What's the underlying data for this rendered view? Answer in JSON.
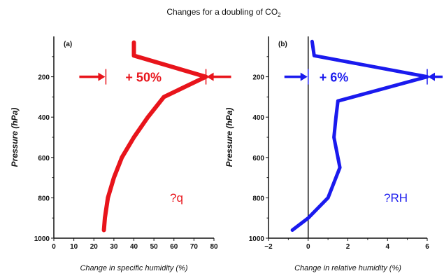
{
  "title": "Changes for a doubling of CO",
  "title_subscript": "2",
  "chart_data": [
    {
      "type": "line",
      "panel_label": "(a)",
      "xlabel": "Change in specific humidity (%)",
      "ylabel": "Pressure (hPa)",
      "xlim": [
        0,
        80
      ],
      "ylim": [
        1000,
        0
      ],
      "xticks": [
        0,
        10,
        20,
        30,
        40,
        50,
        60,
        70,
        80
      ],
      "yticks": [
        200,
        400,
        600,
        800,
        1000
      ],
      "color": "#e8141b",
      "series": [
        {
          "points": [
            [
              40,
              30
            ],
            [
              40,
              95
            ],
            [
              76,
              200
            ],
            [
              55,
              300
            ],
            [
              47,
              400
            ],
            [
              40,
              500
            ],
            [
              34,
              600
            ],
            [
              30,
              700
            ],
            [
              27,
              800
            ],
            [
              25.5,
              900
            ],
            [
              25,
              960
            ]
          ]
        }
      ],
      "annotations": {
        "arrow_label": "+ 50%",
        "arrow_pressure": 200,
        "arrow_from": 26,
        "arrow_to": 76,
        "corner_text": "?q"
      }
    },
    {
      "type": "line",
      "panel_label": "(b)",
      "xlabel": "Change in relative humidity (%)",
      "ylabel": "Pressure (hPa)",
      "xlim": [
        -2,
        6
      ],
      "ylim": [
        1000,
        0
      ],
      "xticks": [
        -2,
        0,
        2,
        4,
        6
      ],
      "yticks": [
        200,
        400,
        600,
        800,
        1000
      ],
      "zero_line": 0,
      "color": "#1a1aee",
      "series": [
        {
          "points": [
            [
              0.2,
              25
            ],
            [
              0.3,
              95
            ],
            [
              6.0,
              200
            ],
            [
              1.5,
              320
            ],
            [
              1.4,
              400
            ],
            [
              1.3,
              500
            ],
            [
              1.6,
              650
            ],
            [
              1.0,
              800
            ],
            [
              0.0,
              900
            ],
            [
              -0.8,
              960
            ]
          ]
        }
      ],
      "annotations": {
        "arrow_label": "+ 6%",
        "arrow_pressure": 200,
        "arrow_from": 0,
        "arrow_to": 6,
        "corner_text": "?RH"
      }
    }
  ]
}
